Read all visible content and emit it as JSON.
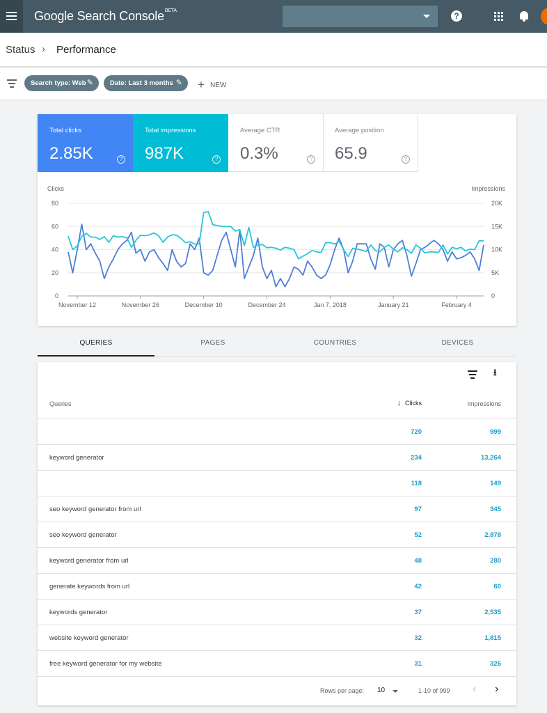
{
  "app": {
    "title": "Google Search Console",
    "badge": "BETA"
  },
  "topbar": {
    "help_symbol": "?"
  },
  "breadcrumb": {
    "parent": "Status",
    "separator": "›",
    "current": "Performance"
  },
  "filters": {
    "chips": [
      {
        "label": "Search type: Web"
      },
      {
        "label": "Date: Last 3 months"
      }
    ],
    "new_symbol": "+",
    "new_label": "NEW"
  },
  "metrics": [
    {
      "label": "Total clicks",
      "value": "2.85K",
      "selected": true,
      "color": "#4285f4"
    },
    {
      "label": "Total impressions",
      "value": "987K",
      "selected": true,
      "color": "#00bcd4"
    },
    {
      "label": "Average CTR",
      "value": "0.3%",
      "selected": false
    },
    {
      "label": "Average position",
      "value": "65.9",
      "selected": false
    }
  ],
  "help_symbol": "?",
  "chart_data": {
    "type": "line",
    "left_axis_label": "Clicks",
    "right_axis_label": "Impressions",
    "y_left_ticks": [
      "80",
      "60",
      "40",
      "20",
      "0"
    ],
    "y_right_ticks": [
      "20K",
      "15K",
      "10K",
      "5K",
      "0"
    ],
    "ylim_left": [
      0,
      80
    ],
    "ylim_right": [
      0,
      20000
    ],
    "x_tick_labels": [
      "November 12",
      "November 26",
      "December 10",
      "December 24",
      "Jan 7, 2018",
      "January 21",
      "February 4"
    ],
    "x_tick_indices": [
      2,
      16,
      30,
      44,
      58,
      72,
      86
    ],
    "grid": true,
    "series": [
      {
        "name": "Clicks",
        "axis": "left",
        "color": "#4e7fd6",
        "values": [
          38,
          20,
          40,
          62,
          40,
          45,
          37,
          30,
          15,
          25,
          32,
          40,
          45,
          48,
          55,
          37,
          40,
          30,
          38,
          40,
          33,
          28,
          22,
          40,
          30,
          25,
          28,
          45,
          40,
          50,
          20,
          18,
          22,
          35,
          48,
          55,
          40,
          25,
          57,
          15,
          25,
          35,
          50,
          25,
          15,
          22,
          8,
          15,
          8,
          15,
          25,
          23,
          18,
          30,
          25,
          18,
          15,
          18,
          27,
          40,
          50,
          40,
          20,
          30,
          45,
          45,
          45,
          32,
          23,
          45,
          42,
          25,
          40,
          45,
          48,
          35,
          17,
          28,
          40,
          42,
          45,
          48,
          45,
          40,
          30,
          38,
          32,
          33,
          35,
          38,
          32,
          22,
          44
        ]
      },
      {
        "name": "Impressions",
        "axis": "right",
        "color": "#26c6da",
        "values": [
          12900,
          10000,
          10800,
          12900,
          13500,
          12700,
          12700,
          12200,
          12800,
          11600,
          13000,
          12700,
          12800,
          12500,
          10500,
          12000,
          13100,
          13000,
          13200,
          13600,
          13000,
          11600,
          12700,
          13200,
          13100,
          12400,
          11500,
          11700,
          11200,
          11200,
          18000,
          18200,
          15400,
          15200,
          15000,
          15000,
          15000,
          14000,
          14300,
          10900,
          14800,
          10500,
          11000,
          11100,
          10400,
          10500,
          10300,
          9900,
          10500,
          10300,
          10000,
          8000,
          8600,
          9100,
          9800,
          9500,
          9400,
          11500,
          11500,
          11200,
          11800,
          10000,
          8500,
          10300,
          10100,
          9900,
          9600,
          11000,
          9800,
          9500,
          10500,
          11000,
          10100,
          9500,
          10400,
          10000,
          9200,
          11000,
          10300,
          9300,
          9500,
          9500,
          9400,
          11000,
          9100,
          10500,
          10200,
          10500,
          9700,
          10100,
          10000,
          11900,
          11900
        ]
      }
    ]
  },
  "tabs": [
    {
      "label": "QUERIES",
      "active": true
    },
    {
      "label": "PAGES",
      "active": false
    },
    {
      "label": "COUNTRIES",
      "active": false
    },
    {
      "label": "DEVICES",
      "active": false
    }
  ],
  "table": {
    "columns": {
      "query": "Queries",
      "sort_symbol": "↓",
      "clicks": "Clicks",
      "impressions": "Impressions"
    },
    "rows": [
      {
        "query": "",
        "clicks": "720",
        "impressions": "999"
      },
      {
        "query": "keyword generator",
        "clicks": "234",
        "impressions": "13,264"
      },
      {
        "query": "",
        "clicks": "118",
        "impressions": "149"
      },
      {
        "query": "seo keyword generator from url",
        "clicks": "97",
        "impressions": "345"
      },
      {
        "query": "seo keyword generator",
        "clicks": "52",
        "impressions": "2,878"
      },
      {
        "query": "keyword generator from url",
        "clicks": "48",
        "impressions": "280"
      },
      {
        "query": "generate keywords from url",
        "clicks": "42",
        "impressions": "60"
      },
      {
        "query": "keywords generator",
        "clicks": "37",
        "impressions": "2,535"
      },
      {
        "query": "website keyword generator",
        "clicks": "32",
        "impressions": "1,815"
      },
      {
        "query": "free keyword generator for my website",
        "clicks": "31",
        "impressions": "326"
      }
    ],
    "pagination": {
      "rows_per_page_label": "Rows per page:",
      "rows_per_page": "10",
      "range": "1-10 of 999",
      "prev_symbol": "‹",
      "next_symbol": "›"
    }
  }
}
